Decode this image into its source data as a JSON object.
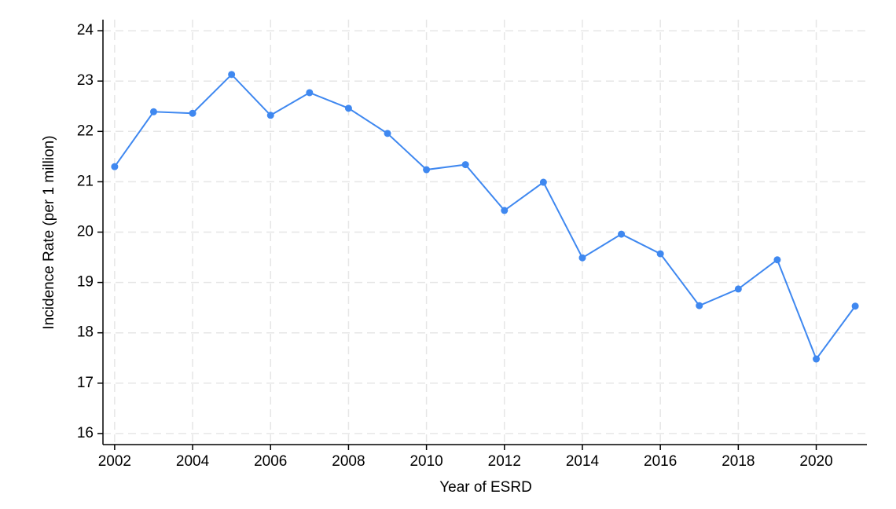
{
  "chart_data": {
    "type": "line",
    "x_label": "Year of ESRD",
    "y_label": "Incidence Rate (per 1 million)",
    "x": [
      2002,
      2003,
      2004,
      2005,
      2006,
      2007,
      2008,
      2009,
      2010,
      2011,
      2012,
      2013,
      2014,
      2015,
      2016,
      2017,
      2018,
      2019,
      2020,
      2021
    ],
    "series": [
      {
        "name": "Incidence Rate",
        "color": "#3f88f0",
        "values": [
          21.3,
          22.39,
          22.36,
          23.13,
          22.32,
          22.77,
          22.46,
          21.96,
          21.24,
          21.34,
          20.43,
          20.99,
          19.49,
          19.96,
          19.57,
          18.54,
          18.87,
          19.45,
          17.48,
          18.53
        ]
      }
    ],
    "xlim": [
      2001.7,
      2021.3
    ],
    "ylim": [
      15.78,
      24.22
    ],
    "xticks": [
      2002,
      2004,
      2006,
      2008,
      2010,
      2012,
      2014,
      2016,
      2018,
      2020
    ],
    "yticks": [
      16,
      17,
      18,
      19,
      20,
      21,
      22,
      23,
      24
    ],
    "grid": true
  }
}
